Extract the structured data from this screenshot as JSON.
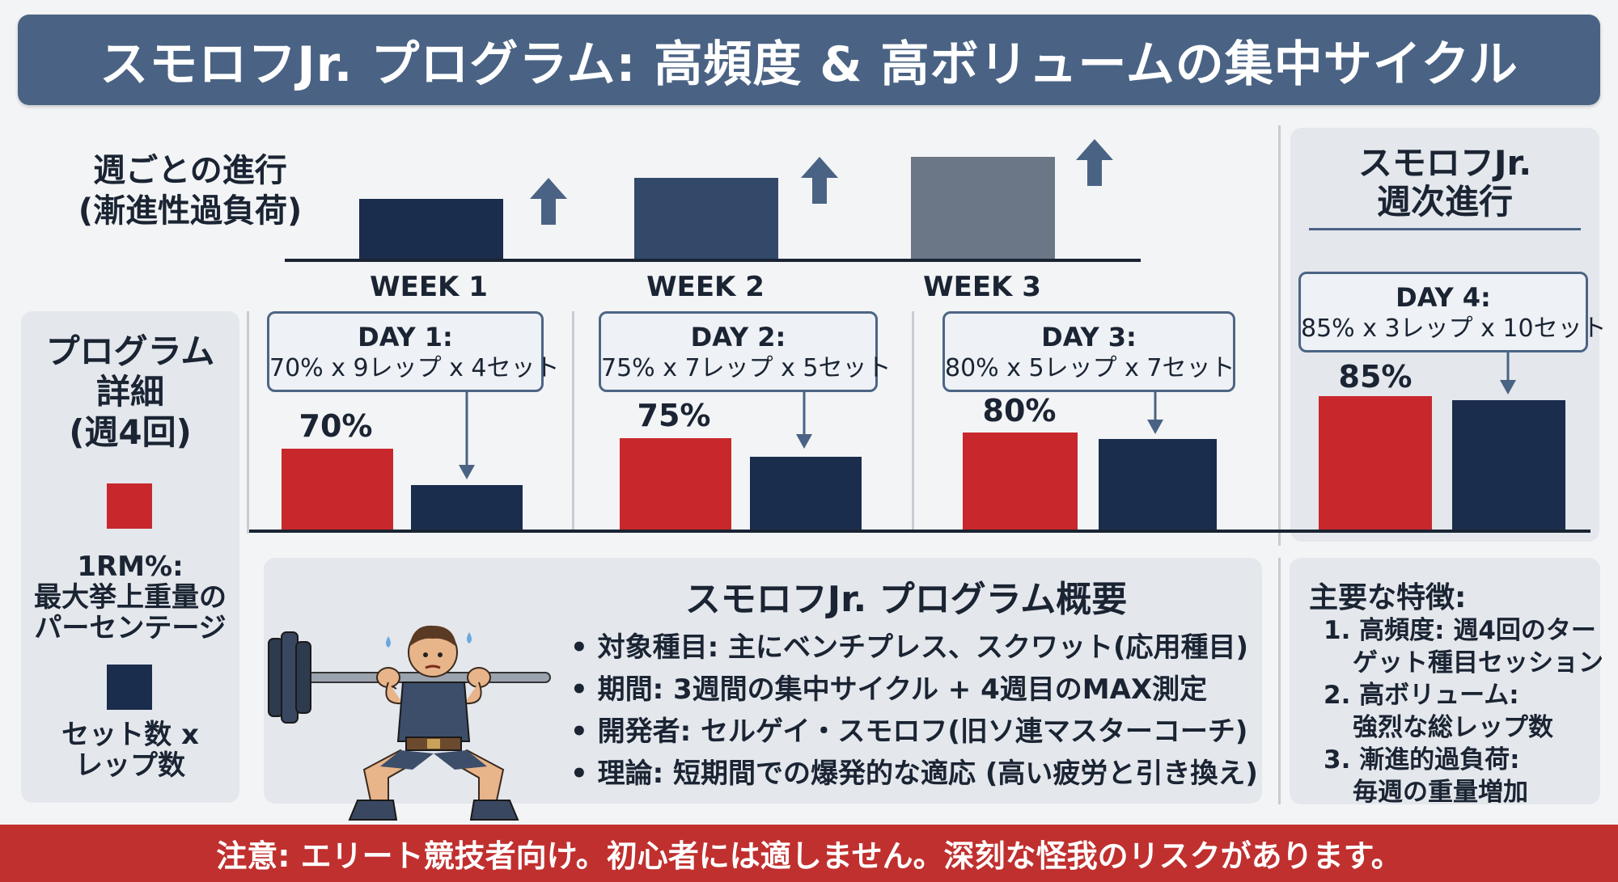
{
  "title": "スモロフJr. プログラム: 高頻度 & 高ボリュームの集中サイクル",
  "progression": {
    "heading_line1": "週ごとの進行",
    "heading_line2": "(漸進性過負荷)",
    "weeks": [
      "WEEK 1",
      "WEEK 2",
      "WEEK 3"
    ]
  },
  "right_panel": {
    "title_line1": "スモロフJr.",
    "title_line2": "週次進行"
  },
  "legend": {
    "title_line1": "プログラム",
    "title_line2": "詳細",
    "title_line3": "(週4回)",
    "red_label_line1": "1RM%:",
    "red_label_line2": "最大挙上重量の",
    "red_label_line3": "パーセンテージ",
    "navy_label_line1": "セット数 x",
    "navy_label_line2": "レップ数"
  },
  "days": [
    {
      "title": "DAY 1:",
      "detail": "70% x 9レップ x 4セット",
      "percent_label": "70%"
    },
    {
      "title": "DAY 2:",
      "detail": "75% x 7レップ x 5セット",
      "percent_label": "75%"
    },
    {
      "title": "DAY 3:",
      "detail": "80% x 5レップ x 7セット",
      "percent_label": "80%"
    },
    {
      "title": "DAY 4:",
      "detail": "85% x 3レップ x 10セット",
      "percent_label": "85%"
    }
  ],
  "overview": {
    "title": "スモロフJr. プログラム概要",
    "items": [
      "対象種目: 主にベンチプレス、スクワット(応用種目)",
      "期間: 3週間の集中サイクル + 4週目のMAX測定",
      "開発者: セルゲイ・スモロフ(旧ソ連マスターコーチ)",
      "理論: 短期間での爆発的な適応 (高い疲労と引き換え)"
    ]
  },
  "features": {
    "title": "主要な特徴:",
    "items": [
      {
        "line1": "1. 高頻度: 週4回のター",
        "line2": "ゲット種目セッション"
      },
      {
        "line1": "2. 高ボリューム:",
        "line2": "強烈な総レップ数"
      },
      {
        "line1": "3. 漸進的過負荷:",
        "line2": "毎週の重量増加"
      }
    ]
  },
  "warning": "注意: エリート競技者向け。初心者には適しません。深刻な怪我のリスクがあります。",
  "colors": {
    "red": "#c8282c",
    "navy": "#1b2d4d",
    "banner": "#4a6384",
    "warning": "#c0302f"
  },
  "icons": [
    "up-arrow-icon",
    "down-arrow-icon",
    "bullet-dot-icon",
    "squat-lifter-illustration"
  ]
}
